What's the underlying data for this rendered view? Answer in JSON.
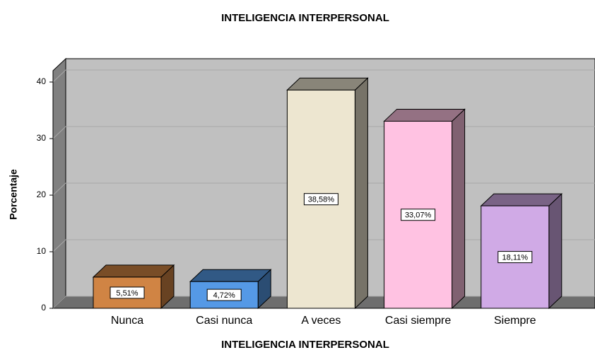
{
  "chart_data": {
    "type": "bar3d",
    "title": "INTELIGENCIA INTERPERSONAL",
    "xlabel": "INTELIGENCIA INTERPERSONAL",
    "ylabel": "Porcentaje",
    "categories": [
      "Nunca",
      "Casi nunca",
      "A veces",
      "Casi siempre",
      "Siempre"
    ],
    "values": [
      5.51,
      4.72,
      38.58,
      33.07,
      18.11
    ],
    "value_labels": [
      "5,51%",
      "4,72%",
      "38,58%",
      "33,07%",
      "18,11%"
    ],
    "colors": [
      "#d08444",
      "#5599e6",
      "#ede6d0",
      "#ffc2e2",
      "#d0aae6"
    ],
    "ylim": [
      0,
      42
    ],
    "yticks": [
      0,
      10,
      20,
      30,
      40
    ],
    "grid": true
  }
}
